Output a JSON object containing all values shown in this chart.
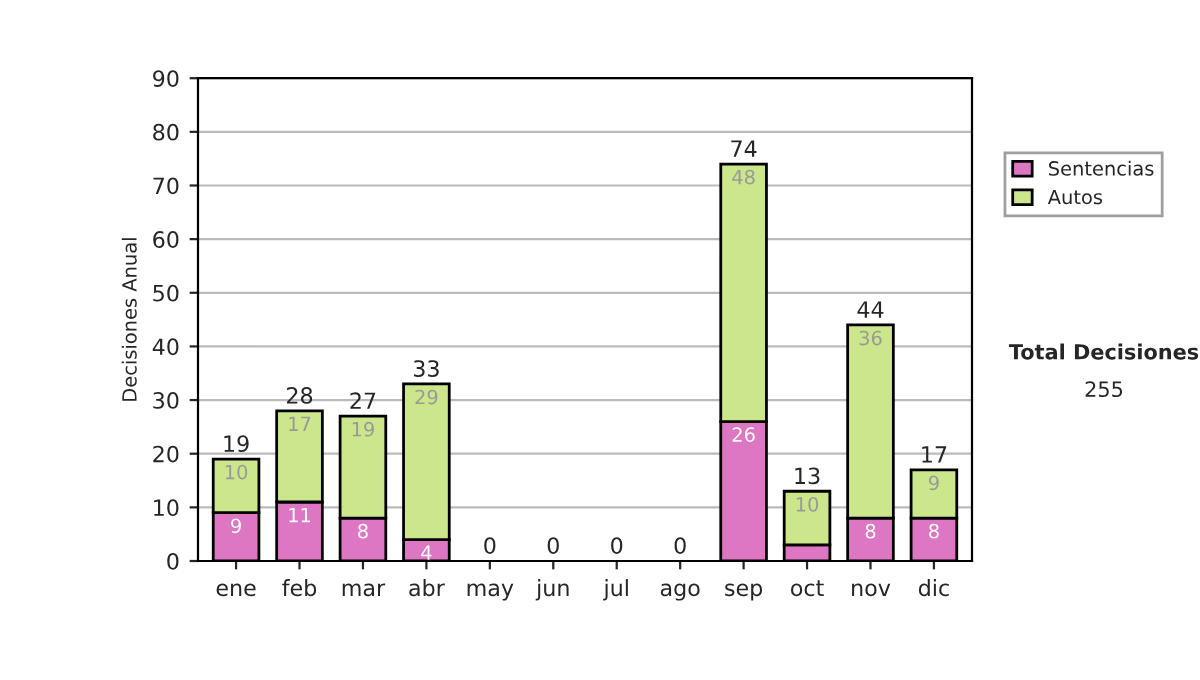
{
  "chart_data": {
    "type": "bar",
    "stacked": true,
    "ylabel": "Decisiones Anual",
    "categories": [
      "ene",
      "feb",
      "mar",
      "abr",
      "may",
      "jun",
      "jul",
      "ago",
      "sep",
      "oct",
      "nov",
      "dic"
    ],
    "series": [
      {
        "name": "Sentencias",
        "color": "#dd77c4",
        "values": [
          9,
          11,
          8,
          4,
          0,
          0,
          0,
          0,
          26,
          3,
          8,
          8
        ],
        "value_labels": [
          "9",
          "11",
          "8",
          "4",
          null,
          null,
          null,
          null,
          "26",
          null,
          "8",
          "8"
        ]
      },
      {
        "name": "Autos",
        "color": "#cce68c",
        "values": [
          10,
          17,
          19,
          29,
          0,
          0,
          0,
          0,
          48,
          10,
          36,
          9
        ],
        "value_labels": [
          "10",
          "17",
          "19",
          "29",
          null,
          null,
          null,
          null,
          "48",
          "10",
          "36",
          "9"
        ]
      }
    ],
    "totals": [
      "19",
      "28",
      "27",
      "33",
      "0",
      "0",
      "0",
      "0",
      "74",
      "13",
      "44",
      "17"
    ],
    "ylim": [
      0,
      90
    ],
    "yticks": [
      0,
      10,
      20,
      30,
      40,
      50,
      60,
      70,
      80,
      90
    ],
    "grid": "y",
    "legend": "right",
    "annotations": [
      "Total Decisiones",
      "255"
    ]
  }
}
